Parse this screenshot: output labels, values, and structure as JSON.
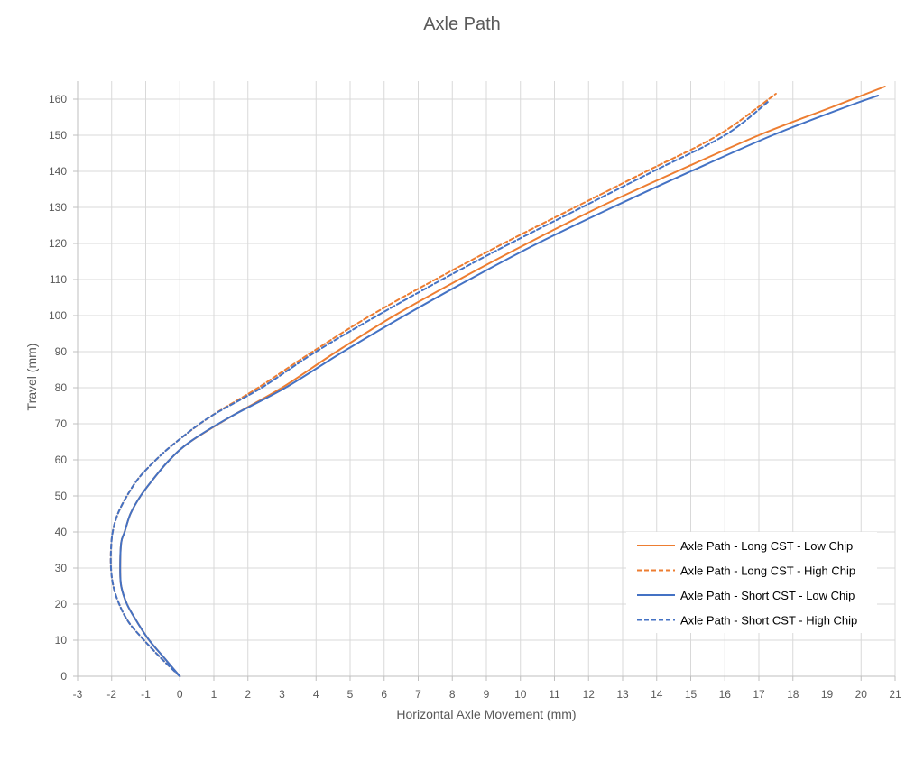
{
  "chart_data": {
    "type": "line",
    "title": "Axle Path",
    "xlabel": "Horizontal Axle Movement (mm)",
    "ylabel": "Travel (mm)",
    "xlim": [
      -3,
      21
    ],
    "ylim": [
      0,
      165
    ],
    "xticks": [
      -3,
      -2,
      -1,
      0,
      1,
      2,
      3,
      4,
      5,
      6,
      7,
      8,
      9,
      10,
      11,
      12,
      13,
      14,
      15,
      16,
      17,
      18,
      19,
      20,
      21
    ],
    "yticks": [
      0,
      10,
      20,
      30,
      40,
      50,
      60,
      70,
      80,
      90,
      100,
      110,
      120,
      130,
      140,
      150,
      160
    ],
    "grid": true,
    "legend_position": "bottom-right",
    "series": [
      {
        "name": "Axle Path - Long CST - Low Chip",
        "color": "#ED7D31",
        "dash": "solid",
        "x": [
          0,
          -0.45,
          -0.9,
          -1.25,
          -1.55,
          -1.72,
          -1.75,
          -1.72,
          -1.62,
          -1.45,
          -1.15,
          -0.75,
          -0.3,
          0.3,
          1.5,
          3.0,
          4.6,
          6.3,
          8.2,
          10.2,
          12.3,
          14.6,
          17.0,
          19.2,
          20.7
        ],
        "y": [
          0,
          5,
          10,
          15,
          20,
          25,
          30,
          37,
          40,
          45,
          50,
          55,
          60,
          65,
          72,
          80,
          90,
          100,
          110,
          120,
          130,
          140,
          150,
          158,
          163.5
        ]
      },
      {
        "name": "Axle Path - Long CST - High Chip",
        "color": "#ED7D31",
        "dash": "dashed",
        "x": [
          0,
          -0.55,
          -1.05,
          -1.5,
          -1.78,
          -1.95,
          -2.02,
          -2.02,
          -1.97,
          -1.82,
          -1.55,
          -1.2,
          -0.7,
          -0.1,
          0.9,
          2.3,
          3.9,
          5.6,
          7.5,
          9.5,
          11.6,
          13.7,
          15.8,
          17.5
        ],
        "y": [
          0,
          5,
          10,
          15,
          20,
          25,
          30,
          35,
          40,
          45,
          50,
          55,
          60,
          65,
          72,
          80,
          90,
          100,
          110,
          120,
          130,
          140,
          150,
          161.5
        ]
      },
      {
        "name": "Axle Path - Short CST - Low Chip",
        "color": "#4472C4",
        "dash": "solid",
        "x": [
          0,
          -0.45,
          -0.9,
          -1.25,
          -1.55,
          -1.72,
          -1.75,
          -1.72,
          -1.62,
          -1.45,
          -1.15,
          -0.75,
          -0.3,
          0.3,
          1.5,
          3.1,
          4.8,
          6.6,
          8.5,
          10.5,
          12.7,
          15.0,
          17.4,
          19.6,
          20.5
        ],
        "y": [
          0,
          5,
          10,
          15,
          20,
          25,
          30,
          37,
          40,
          45,
          50,
          55,
          60,
          65,
          72,
          80,
          90,
          100,
          110,
          120,
          130,
          140,
          150,
          158,
          161
        ]
      },
      {
        "name": "Axle Path - Short CST - High Chip",
        "color": "#4472C4",
        "dash": "dashed",
        "x": [
          0,
          -0.55,
          -1.05,
          -1.5,
          -1.78,
          -1.95,
          -2.02,
          -2.02,
          -1.97,
          -1.82,
          -1.55,
          -1.2,
          -0.7,
          -0.1,
          0.9,
          2.4,
          4.0,
          5.8,
          7.7,
          9.7,
          11.8,
          13.9,
          16.0,
          17.3
        ],
        "y": [
          0,
          5,
          10,
          15,
          20,
          25,
          30,
          35,
          40,
          45,
          50,
          55,
          60,
          65,
          72,
          80,
          90,
          100,
          110,
          120,
          130,
          140,
          150,
          159.5
        ]
      }
    ]
  }
}
